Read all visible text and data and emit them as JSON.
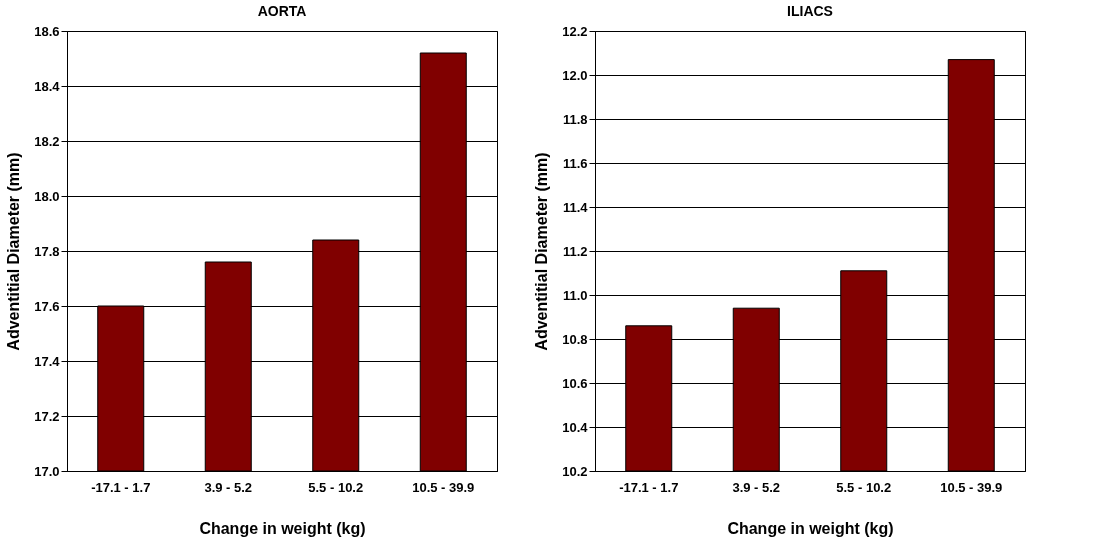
{
  "chart_data": [
    {
      "type": "bar",
      "title": "AORTA",
      "xlabel": "Change in weight (kg)",
      "ylabel": "Adventitial Diameter (mm)",
      "categories": [
        "-17.1 - 1.7",
        "3.9 - 5.2",
        "5.5 - 10.2",
        "10.5 - 39.9"
      ],
      "values": [
        17.6,
        17.76,
        17.84,
        18.52
      ],
      "color": "#800000",
      "ylim": [
        17.0,
        18.6
      ],
      "yticks": [
        {
          "value": 17.0,
          "label": "17.0"
        },
        17.2,
        17.4,
        17.6,
        17.8,
        {
          "value": 18.0,
          "label": "18.0"
        },
        18.2,
        18.4,
        18.6
      ],
      "grid": "y"
    },
    {
      "type": "bar",
      "title": "ILIACS",
      "xlabel": "Change in weight (kg)",
      "ylabel": "Adventitial Diameter (mm)",
      "categories": [
        "-17.1 - 1.7",
        "3.9 - 5.2",
        "5.5 - 10.2",
        "10.5 - 39.9"
      ],
      "values": [
        10.86,
        10.94,
        11.11,
        12.07
      ],
      "color": "#800000",
      "ylim": [
        10.2,
        12.2
      ],
      "yticks": [
        10.2,
        10.4,
        10.6,
        10.8,
        {
          "value": 11.0,
          "label": "11.0"
        },
        11.2,
        11.4,
        11.6,
        11.8,
        {
          "value": 12.0,
          "label": "12.0"
        },
        12.2
      ],
      "grid": "y"
    }
  ]
}
